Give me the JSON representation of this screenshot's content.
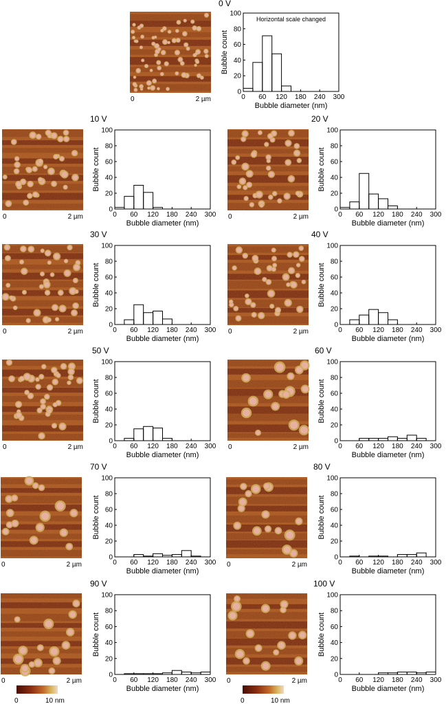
{
  "scale_labels": {
    "left": "0",
    "right": "2 µm"
  },
  "colorbar": {
    "min_label": "0",
    "max_label": "10 nm"
  },
  "colors": {
    "afm_dark": "#6b1a0a",
    "afm_mid": "#a8501e",
    "afm_light": "#cfae5a",
    "bubble": "#e8b0a0",
    "bar_stroke": "#000000"
  },
  "panels": [
    {
      "voltage": "0 V"
    },
    {
      "voltage": "10 V"
    },
    {
      "voltage": "20 V"
    },
    {
      "voltage": "30 V"
    },
    {
      "voltage": "40 V"
    },
    {
      "voltage": "50 V"
    },
    {
      "voltage": "60 V"
    },
    {
      "voltage": "70 V"
    },
    {
      "voltage": "80 V"
    },
    {
      "voltage": "90 V"
    },
    {
      "voltage": "100 V"
    }
  ],
  "chart_data": [
    {
      "type": "bar",
      "histogram": true,
      "title": "0 V",
      "annotation": "Horizontal scale changed",
      "xlabel": "Bubble diameter (nm)",
      "ylabel": "Bubble count",
      "xlim": [
        0,
        300
      ],
      "ylim": [
        0,
        100
      ],
      "xticks": [
        0,
        60,
        120,
        180,
        240,
        300
      ],
      "yticks": [
        0,
        20,
        40,
        60,
        80,
        100
      ],
      "bin_width": 30,
      "bin_starts": [
        0,
        30,
        60,
        90,
        120
      ],
      "values": [
        4,
        37,
        71,
        48,
        7
      ]
    },
    {
      "type": "bar",
      "histogram": true,
      "title": "10 V",
      "xlabel": "Bubble diameter (nm)",
      "ylabel": "Bubble count",
      "xlim": [
        0,
        300
      ],
      "ylim": [
        0,
        100
      ],
      "xticks": [
        0,
        60,
        120,
        180,
        240,
        300
      ],
      "yticks": [
        0,
        20,
        40,
        60,
        80,
        100
      ],
      "bin_width": 30,
      "bin_starts": [
        0,
        30,
        60,
        90,
        120
      ],
      "values": [
        2,
        16,
        30,
        21,
        2
      ]
    },
    {
      "type": "bar",
      "histogram": true,
      "title": "20 V",
      "xlabel": "Bubble diameter (nm)",
      "ylabel": "Bubble count",
      "xlim": [
        0,
        300
      ],
      "ylim": [
        0,
        100
      ],
      "xticks": [
        0,
        60,
        120,
        180,
        240,
        300
      ],
      "yticks": [
        0,
        20,
        40,
        60,
        80,
        100
      ],
      "bin_width": 30,
      "bin_starts": [
        0,
        30,
        60,
        90,
        120,
        150
      ],
      "values": [
        2,
        9,
        45,
        19,
        13,
        4
      ]
    },
    {
      "type": "bar",
      "histogram": true,
      "title": "30 V",
      "xlabel": "Bubble diameter (nm)",
      "ylabel": "Bubble count",
      "xlim": [
        0,
        300
      ],
      "ylim": [
        0,
        100
      ],
      "xticks": [
        0,
        60,
        120,
        180,
        240,
        300
      ],
      "yticks": [
        0,
        20,
        40,
        60,
        80,
        100
      ],
      "bin_width": 30,
      "bin_starts": [
        30,
        60,
        90,
        120,
        150
      ],
      "values": [
        6,
        25,
        15,
        17,
        7
      ]
    },
    {
      "type": "bar",
      "histogram": true,
      "title": "40 V",
      "xlabel": "Bubble diameter (nm)",
      "ylabel": "Bubble count",
      "xlim": [
        0,
        300
      ],
      "ylim": [
        0,
        100
      ],
      "xticks": [
        0,
        60,
        120,
        180,
        240,
        300
      ],
      "yticks": [
        0,
        20,
        40,
        60,
        80,
        100
      ],
      "bin_width": 30,
      "bin_starts": [
        30,
        60,
        90,
        120,
        150
      ],
      "values": [
        6,
        12,
        19,
        15,
        6
      ]
    },
    {
      "type": "bar",
      "histogram": true,
      "title": "50 V",
      "xlabel": "Bubble diameter (nm)",
      "ylabel": "Bubble count",
      "xlim": [
        0,
        300
      ],
      "ylim": [
        0,
        100
      ],
      "xticks": [
        0,
        60,
        120,
        180,
        240,
        300
      ],
      "yticks": [
        0,
        20,
        40,
        60,
        80,
        100
      ],
      "bin_width": 30,
      "bin_starts": [
        30,
        60,
        90,
        120,
        150
      ],
      "values": [
        3,
        15,
        18,
        16,
        3
      ]
    },
    {
      "type": "bar",
      "histogram": true,
      "title": "60 V",
      "xlabel": "Bubble diameter (nm)",
      "ylabel": "Bubble count",
      "xlim": [
        0,
        300
      ],
      "ylim": [
        0,
        100
      ],
      "xticks": [
        0,
        60,
        120,
        180,
        240,
        300
      ],
      "yticks": [
        0,
        20,
        40,
        60,
        80,
        100
      ],
      "bin_width": 30,
      "bin_starts": [
        60,
        90,
        120,
        150,
        180,
        210,
        240
      ],
      "values": [
        3,
        3,
        3,
        5,
        3,
        7,
        3
      ]
    },
    {
      "type": "bar",
      "histogram": true,
      "title": "70 V",
      "xlabel": "Bubble diameter (nm)",
      "ylabel": "Bubble count",
      "xlim": [
        0,
        300
      ],
      "ylim": [
        0,
        100
      ],
      "xticks": [
        0,
        60,
        120,
        180,
        240,
        300
      ],
      "yticks": [
        0,
        20,
        40,
        60,
        80,
        100
      ],
      "bin_width": 30,
      "bin_starts": [
        60,
        90,
        120,
        150,
        180,
        210,
        240
      ],
      "values": [
        3,
        1,
        4,
        2,
        3,
        8,
        1
      ]
    },
    {
      "type": "bar",
      "histogram": true,
      "title": "80 V",
      "xlabel": "Bubble diameter (nm)",
      "ylabel": "Bubble count",
      "xlim": [
        0,
        300
      ],
      "ylim": [
        0,
        100
      ],
      "xticks": [
        0,
        60,
        120,
        180,
        240,
        300
      ],
      "yticks": [
        0,
        20,
        40,
        60,
        80,
        100
      ],
      "bin_width": 30,
      "bin_starts": [
        30,
        60,
        90,
        120,
        150,
        180,
        210,
        240
      ],
      "values": [
        1,
        0,
        1,
        1,
        0,
        3,
        3,
        5
      ]
    },
    {
      "type": "bar",
      "histogram": true,
      "title": "90 V",
      "xlabel": "Bubble diameter (nm)",
      "ylabel": "Bubble count",
      "xlim": [
        0,
        300
      ],
      "ylim": [
        0,
        100
      ],
      "xticks": [
        0,
        60,
        120,
        180,
        240,
        300
      ],
      "yticks": [
        0,
        20,
        40,
        60,
        80,
        100
      ],
      "bin_width": 30,
      "bin_starts": [
        30,
        60,
        90,
        120,
        150,
        180,
        210,
        240,
        270
      ],
      "values": [
        1,
        1,
        1,
        1,
        2,
        5,
        3,
        2,
        3
      ]
    },
    {
      "type": "bar",
      "histogram": true,
      "title": "100 V",
      "xlabel": "Bubble diameter (nm)",
      "ylabel": "Bubble count",
      "xlim": [
        0,
        300
      ],
      "ylim": [
        0,
        100
      ],
      "xticks": [
        0,
        60,
        120,
        180,
        240,
        300
      ],
      "yticks": [
        0,
        20,
        40,
        60,
        80,
        100
      ],
      "bin_width": 30,
      "bin_starts": [
        120,
        150,
        180,
        210,
        240,
        270
      ],
      "values": [
        2,
        2,
        3,
        3,
        2,
        3
      ]
    }
  ]
}
